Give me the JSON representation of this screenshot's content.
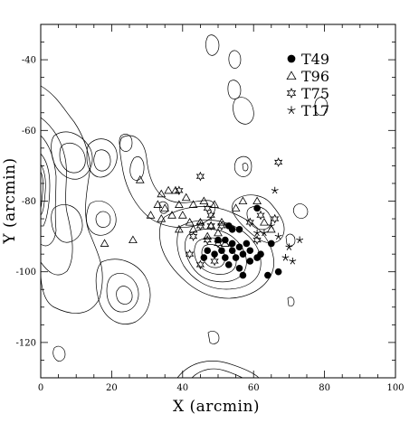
{
  "chart_data": {
    "type": "scatter",
    "xlabel": "X (arcmin)",
    "ylabel": "Y (arcmin)",
    "xlim": [
      0,
      100
    ],
    "ylim": [
      -130,
      -30
    ],
    "x_ticks": [
      "0",
      "20",
      "40",
      "60",
      "80",
      "100"
    ],
    "y_ticks": [
      "-40",
      "-60",
      "-80",
      "-100",
      "-120"
    ],
    "grid": false,
    "legend_position": "top-right",
    "background_contours": true,
    "series": [
      {
        "name": "T49",
        "marker": "filled-circle",
        "points": [
          [
            53,
            -87
          ],
          [
            54,
            -88
          ],
          [
            56,
            -88
          ],
          [
            61,
            -82
          ],
          [
            65,
            -92
          ],
          [
            50,
            -91
          ],
          [
            52,
            -91
          ],
          [
            54,
            -92
          ],
          [
            56,
            -93
          ],
          [
            58,
            -92
          ],
          [
            47,
            -94
          ],
          [
            49,
            -95
          ],
          [
            51,
            -94
          ],
          [
            52,
            -96
          ],
          [
            54,
            -94
          ],
          [
            55,
            -96
          ],
          [
            57,
            -95
          ],
          [
            59,
            -94
          ],
          [
            62,
            -95
          ],
          [
            46,
            -96
          ],
          [
            53,
            -98
          ],
          [
            56,
            -99
          ],
          [
            59,
            -97
          ],
          [
            61,
            -96
          ],
          [
            57,
            -101
          ],
          [
            64,
            -101
          ],
          [
            67,
            -100
          ]
        ]
      },
      {
        "name": "T96",
        "marker": "open-triangle",
        "points": [
          [
            28,
            -74
          ],
          [
            34,
            -78
          ],
          [
            36,
            -77
          ],
          [
            38,
            -77
          ],
          [
            41,
            -79
          ],
          [
            33,
            -81
          ],
          [
            35,
            -82
          ],
          [
            39,
            -81
          ],
          [
            43,
            -81
          ],
          [
            46,
            -80
          ],
          [
            49,
            -81
          ],
          [
            31,
            -84
          ],
          [
            34,
            -85
          ],
          [
            37,
            -84
          ],
          [
            40,
            -84
          ],
          [
            42,
            -86
          ],
          [
            45,
            -86
          ],
          [
            48,
            -87
          ],
          [
            51,
            -86
          ],
          [
            39,
            -88
          ],
          [
            43,
            -88
          ],
          [
            47,
            -90
          ],
          [
            50,
            -89
          ],
          [
            55,
            -82
          ],
          [
            57,
            -80
          ],
          [
            61,
            -80
          ],
          [
            63,
            -86
          ],
          [
            65,
            -88
          ],
          [
            52,
            -92
          ],
          [
            18,
            -92
          ],
          [
            26,
            -91
          ]
        ]
      },
      {
        "name": "T75",
        "marker": "open-star",
        "points": [
          [
            45,
            -73
          ],
          [
            39,
            -77
          ],
          [
            47,
            -82
          ],
          [
            48,
            -84
          ],
          [
            45,
            -87
          ],
          [
            48,
            -87
          ],
          [
            51,
            -87
          ],
          [
            43,
            -90
          ],
          [
            47,
            -91
          ],
          [
            50,
            -92
          ],
          [
            42,
            -95
          ],
          [
            45,
            -98
          ],
          [
            49,
            -97
          ],
          [
            59,
            -86
          ],
          [
            62,
            -84
          ],
          [
            66,
            -85
          ],
          [
            61,
            -91
          ],
          [
            67,
            -69
          ]
        ]
      },
      {
        "name": "T17",
        "marker": "asterisk",
        "points": [
          [
            65,
            -87
          ],
          [
            63,
            -89
          ],
          [
            61,
            -89
          ],
          [
            67,
            -90
          ],
          [
            70,
            -93
          ],
          [
            73,
            -91
          ],
          [
            69,
            -96
          ],
          [
            71,
            -97
          ],
          [
            66,
            -77
          ]
        ]
      }
    ]
  }
}
